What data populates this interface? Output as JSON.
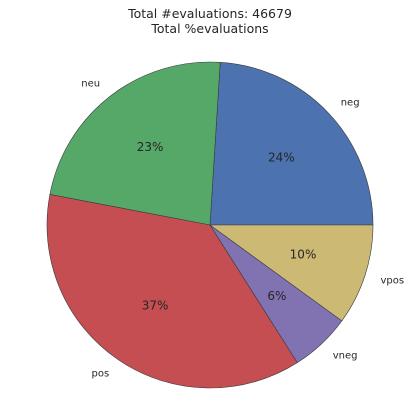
{
  "chart_data": {
    "type": "pie",
    "title_lines": [
      "Total #evaluations: 46679",
      "Total %evaluations"
    ],
    "categories": [
      "neg",
      "neu",
      "pos",
      "vneg",
      "vpos"
    ],
    "values": [
      24,
      23,
      37,
      6,
      10
    ],
    "value_labels": [
      "24%",
      "23%",
      "37%",
      "6%",
      "10%"
    ],
    "colors": [
      "#4c72b0",
      "#55a868",
      "#c44e52",
      "#8172b2",
      "#ccb974"
    ],
    "start_angle_deg": 0,
    "direction": "counterclockwise"
  }
}
